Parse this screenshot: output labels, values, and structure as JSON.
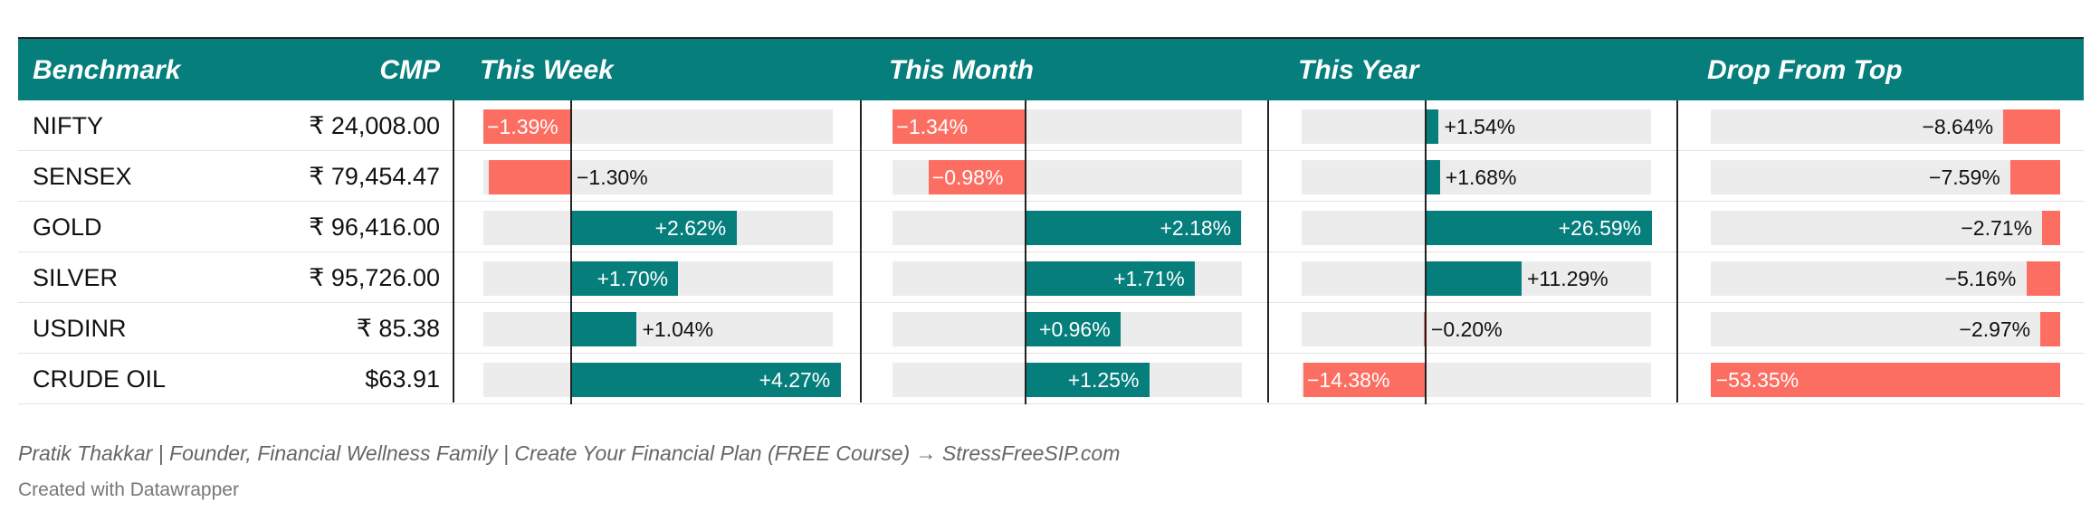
{
  "chart_data": {
    "type": "table",
    "columns": [
      "Benchmark",
      "CMP",
      "This Week",
      "This Month",
      "This Year",
      "Drop From Top"
    ],
    "rows": [
      {
        "name": "NIFTY",
        "cmp": "₹ 24,008.00",
        "week": -1.39,
        "month": -1.34,
        "year": 1.54,
        "drop": -8.64
      },
      {
        "name": "SENSEX",
        "cmp": "₹ 79,454.47",
        "week": -1.3,
        "month": -0.98,
        "year": 1.68,
        "drop": -7.59
      },
      {
        "name": "GOLD",
        "cmp": "₹ 96,416.00",
        "week": 2.62,
        "month": 2.18,
        "year": 26.59,
        "drop": -2.71
      },
      {
        "name": "SILVER",
        "cmp": "₹ 95,726.00",
        "week": 1.7,
        "month": 1.71,
        "year": 11.29,
        "drop": -5.16
      },
      {
        "name": "USDINR",
        "cmp": "₹ 85.38",
        "week": 1.04,
        "month": 0.96,
        "year": -0.2,
        "drop": -2.97
      },
      {
        "name": "CRUDE OIL",
        "cmp": "$63.91",
        "week": 4.27,
        "month": 1.25,
        "year": -14.38,
        "drop": -53.35
      }
    ],
    "labels": {
      "week": [
        "−1.39%",
        "−1.30%",
        "+2.62%",
        "+1.70%",
        "+1.04%",
        "+4.27%"
      ],
      "month": [
        "−1.34%",
        "−0.98%",
        "+2.18%",
        "+1.71%",
        "+0.96%",
        "+1.25%"
      ],
      "year": [
        "+1.54%",
        "+1.68%",
        "+26.59%",
        "+11.29%",
        "−0.20%",
        "−14.38%"
      ],
      "drop": [
        "−8.64%",
        "−7.59%",
        "−2.71%",
        "−5.16%",
        "−2.97%",
        "−53.35%"
      ]
    },
    "colors": {
      "positive": "#057e7c",
      "negative": "#fd6e62",
      "header": "#057e7c",
      "track": "#ececec"
    }
  },
  "footer": {
    "credit": "Pratik Thakkar | Founder, Financial Wellness Family | Create Your Financial Plan (FREE Course) → StressFreeSIP.com",
    "made_with": "Created with Datawrapper"
  }
}
